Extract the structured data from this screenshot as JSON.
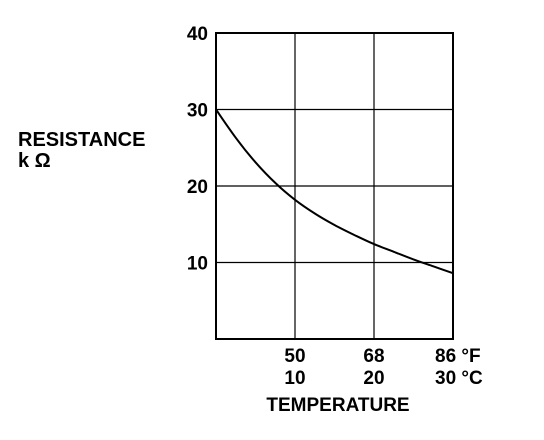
{
  "chart_data": {
    "type": "line",
    "ylabel_line1": "RESISTANCE",
    "ylabel_line2": "k Ω",
    "xlabel": "TEMPERATURE",
    "xlim": [
      0,
      30
    ],
    "ylim": [
      0,
      40
    ],
    "yticks": [
      {
        "value": 10,
        "label": "10"
      },
      {
        "value": 20,
        "label": "20"
      },
      {
        "value": 30,
        "label": "30"
      },
      {
        "value": 40,
        "label": "40"
      }
    ],
    "xticks": [
      {
        "value": 10,
        "label_f": "50",
        "label_c": "10"
      },
      {
        "value": 20,
        "label_f": "68",
        "label_c": "20"
      },
      {
        "value": 30,
        "label_f": "86 °F",
        "label_c": "30 °C"
      }
    ],
    "grid": true,
    "series": [
      {
        "x": [
          0,
          2.5,
          5,
          7.5,
          10,
          12.5,
          15,
          17.5,
          20,
          22.5,
          25,
          27.5,
          30
        ],
        "y": [
          30,
          26.3,
          23.1,
          20.4,
          18.2,
          16.4,
          14.9,
          13.6,
          12.4,
          11.4,
          10.4,
          9.5,
          8.6
        ],
        "color": "#000000"
      }
    ]
  }
}
